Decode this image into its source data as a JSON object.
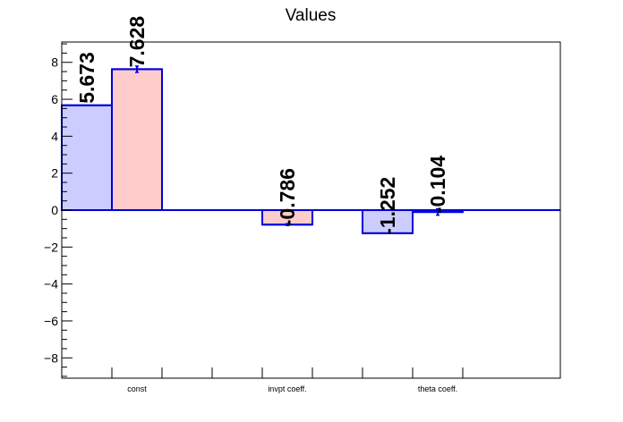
{
  "chart_data": {
    "type": "bar",
    "title": "Values",
    "xlabel": "",
    "ylabel": "",
    "ylim": [
      -9.1,
      9.1
    ],
    "yticks": [
      -8,
      -6,
      -4,
      -2,
      0,
      2,
      4,
      6,
      8
    ],
    "ytick_labels": [
      "−8",
      "−6",
      "−4",
      "−2",
      "0",
      "2",
      "4",
      "6",
      "8"
    ],
    "slot_count": 9,
    "categories": [
      {
        "label": "const",
        "slot": 1
      },
      {
        "label": "invpt coeff.",
        "slot": 4
      },
      {
        "label": "theta coeff.",
        "slot": 7
      }
    ],
    "bars": [
      {
        "slot": 0,
        "value": 5.673,
        "label": "5.673",
        "fill": "#ccccff",
        "error": 0
      },
      {
        "slot": 1,
        "value": 7.628,
        "label": "7.628",
        "fill": "#ffcccc",
        "error": 0.17
      },
      {
        "slot": 4,
        "value": -0.786,
        "label": "-0.786",
        "fill": "#ffcccc",
        "error": 0.05
      },
      {
        "slot": 6,
        "value": -1.252,
        "label": "-1.252",
        "fill": "#ccccff",
        "error": 0
      },
      {
        "slot": 7,
        "value": -0.104,
        "label": "-0.104",
        "fill": "#ccccff",
        "error": 0.17
      }
    ],
    "colors": {
      "edge": "#0000dd",
      "axis": "#000000",
      "zero_line": "#0000dd"
    },
    "grid": false,
    "legend": "none"
  }
}
